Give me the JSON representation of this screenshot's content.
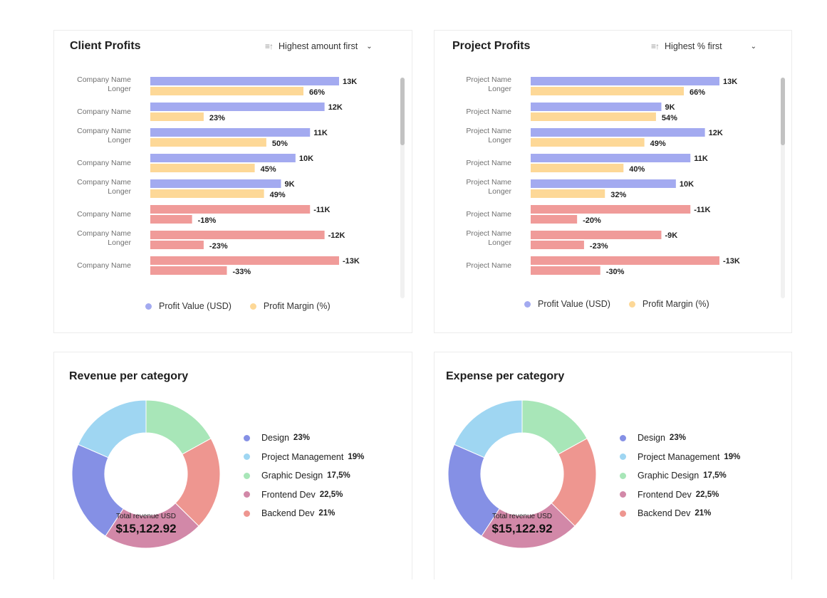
{
  "colors": {
    "profit_value": "#a3aaf0",
    "profit_margin": "#fdd897",
    "negative": "#f09b99",
    "design": "#8590e5",
    "project_management": "#9fd6f2",
    "graphic_design": "#a8e6b8",
    "frontend_dev": "#d288a8",
    "backend_dev": "#ee9690"
  },
  "client_profits": {
    "title": "Client Profits",
    "sort_label": "Highest amount first",
    "sort_icon": "sort-ascending-icon",
    "legend": {
      "value": "Profit Value (USD)",
      "margin": "Profit Margin (%)"
    }
  },
  "project_profits": {
    "title": "Project Profits",
    "sort_label": "Highest % first",
    "sort_icon": "sort-ascending-icon",
    "legend": {
      "value": "Profit Value (USD)",
      "margin": "Profit Margin (%)"
    }
  },
  "revenue": {
    "title": "Revenue per category",
    "center_label": "Total revenue USD",
    "center_value": "$15,122.92"
  },
  "expense": {
    "title": "Expense per category",
    "center_label": "Total revenue USD",
    "center_value": "$15,122.92"
  },
  "chart_data": [
    {
      "type": "bar",
      "orientation": "horizontal",
      "title": "Client Profits",
      "categories": [
        [
          "Company Name",
          "Longer"
        ],
        [
          "Company Name"
        ],
        [
          "Company Name",
          "Longer"
        ],
        [
          "Company Name"
        ],
        [
          "Company Name",
          "Longer"
        ],
        [
          "Company Name"
        ],
        [
          "Company Name",
          "Longer"
        ],
        [
          "Company Name"
        ]
      ],
      "series": [
        {
          "name": "Profit Value (USD)",
          "values": [
            13,
            12,
            11,
            10,
            9,
            -11,
            -12,
            -13
          ],
          "labels": [
            "13K",
            "12K",
            "11K",
            "10K",
            "9K",
            "-11K",
            "-12K",
            "-13K"
          ]
        },
        {
          "name": "Profit Margin (%)",
          "values": [
            66,
            23,
            50,
            45,
            49,
            -18,
            -23,
            -33
          ],
          "labels": [
            "66%",
            "23%",
            "50%",
            "45%",
            "49%",
            "-18%",
            "-23%",
            "-33%"
          ]
        }
      ],
      "legend": "bottom"
    },
    {
      "type": "bar",
      "orientation": "horizontal",
      "title": "Project Profits",
      "categories": [
        [
          "Project Name",
          "Longer"
        ],
        [
          "Project Name"
        ],
        [
          "Project Name",
          "Longer"
        ],
        [
          "Project Name"
        ],
        [
          "Project Name",
          "Longer"
        ],
        [
          "Project Name"
        ],
        [
          "Project Name",
          "Longer"
        ],
        [
          "Project Name"
        ]
      ],
      "series": [
        {
          "name": "Profit Value (USD)",
          "values": [
            13,
            9,
            12,
            11,
            10,
            -11,
            -9,
            -13
          ],
          "labels": [
            "13K",
            "9K",
            "12K",
            "11K",
            "10K",
            "-11K",
            "-9K",
            "-13K"
          ]
        },
        {
          "name": "Profit Margin (%)",
          "values": [
            66,
            54,
            49,
            40,
            32,
            -20,
            -23,
            -30
          ],
          "labels": [
            "66%",
            "54%",
            "49%",
            "40%",
            "32%",
            "-20%",
            "-23%",
            "-30%"
          ]
        }
      ],
      "legend": "bottom"
    },
    {
      "type": "pie",
      "title": "Revenue per category",
      "categories": [
        "Design",
        "Project Management",
        "Graphic Design",
        "Frontend Dev",
        "Backend Dev"
      ],
      "values": [
        23,
        19,
        17.5,
        22.5,
        21
      ],
      "value_labels": [
        "23%",
        "19%",
        "17,5%",
        "22,5%",
        "21%"
      ],
      "legend": "right"
    },
    {
      "type": "pie",
      "title": "Expense per category",
      "categories": [
        "Design",
        "Project Management",
        "Graphic Design",
        "Frontend Dev",
        "Backend Dev"
      ],
      "values": [
        23,
        19,
        17.5,
        22.5,
        21
      ],
      "value_labels": [
        "23%",
        "19%",
        "17,5%",
        "22,5%",
        "21%"
      ],
      "legend": "right"
    }
  ]
}
